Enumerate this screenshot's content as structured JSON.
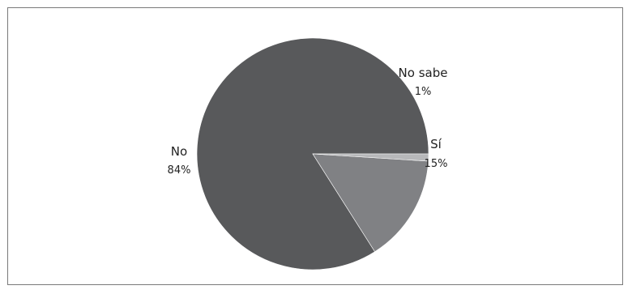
{
  "chart_data": {
    "type": "pie",
    "title": "",
    "slices": [
      {
        "label": "No",
        "value": 84,
        "value_label": "84%",
        "color": "#58595b"
      },
      {
        "label": "Sí",
        "value": 15,
        "value_label": "15%",
        "color": "#808184"
      },
      {
        "label": "No sabe",
        "value": 1,
        "value_label": "1%",
        "color": "#b7b8ba"
      }
    ],
    "legend": "none",
    "labels_position": "outside"
  }
}
